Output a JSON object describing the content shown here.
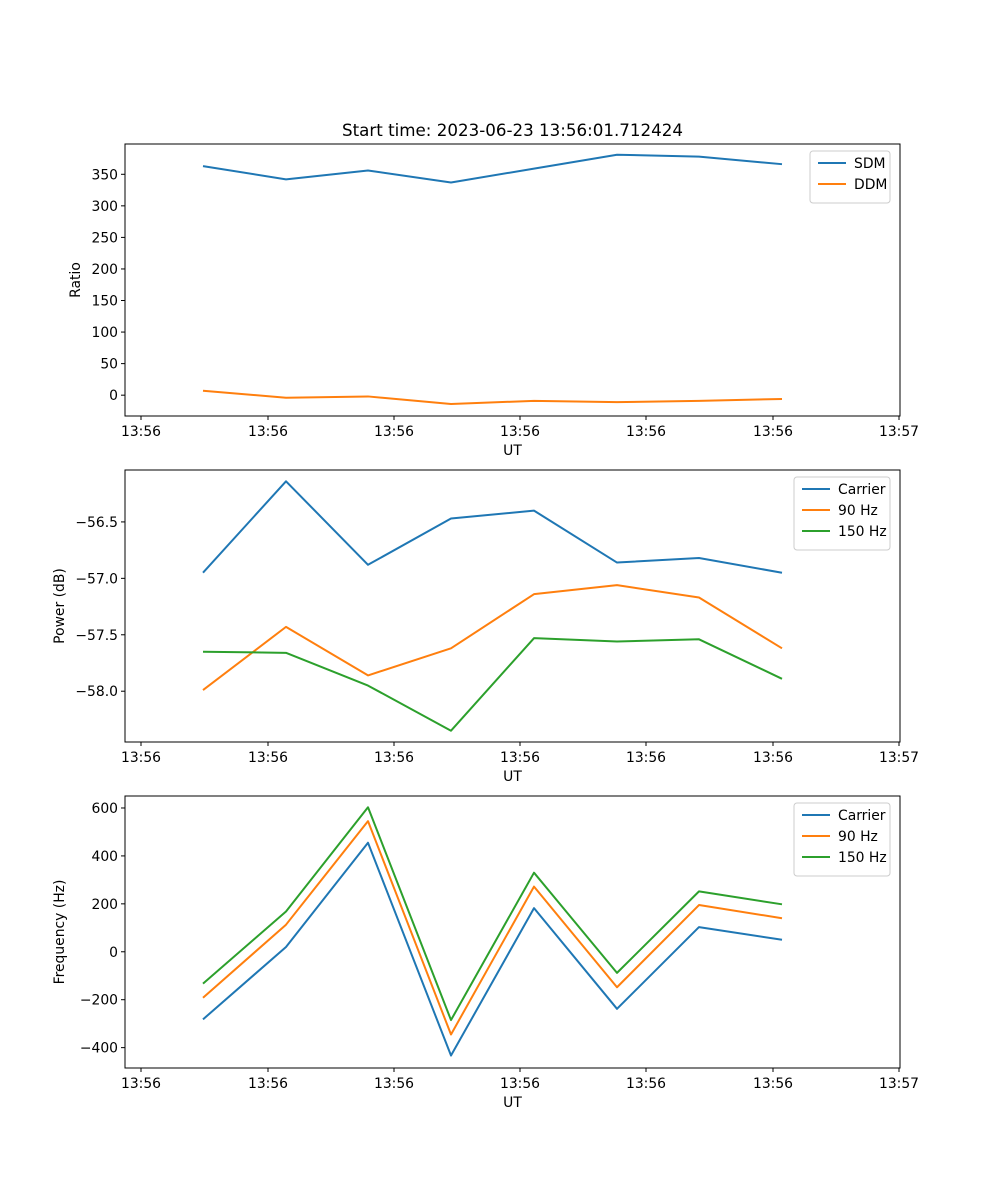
{
  "colors": {
    "blue": "#1f77b4",
    "orange": "#ff7f0e",
    "green": "#2ca02c"
  },
  "chart_data": [
    {
      "type": "line",
      "title": "Start time: 2023-06-23 13:56:01.712424",
      "xlabel": "UT",
      "ylabel": "Ratio",
      "x_tick_labels": [
        "13:56",
        "13:56",
        "13:56",
        "13:56",
        "13:56",
        "13:56",
        "13:56"
      ],
      "x_tick_labels_last": "13:57",
      "ylim": [
        -33,
        398
      ],
      "yticks": [
        0,
        50,
        100,
        150,
        200,
        250,
        300,
        350
      ],
      "legend": "top-right",
      "series": [
        {
          "name": "SDM",
          "color": "#1f77b4",
          "values": [
            363,
            342,
            356,
            337,
            359,
            381,
            378,
            366
          ]
        },
        {
          "name": "DDM",
          "color": "#ff7f0e",
          "values": [
            7,
            -4,
            -2,
            -14,
            -9,
            -11,
            -9,
            -6
          ]
        }
      ]
    },
    {
      "type": "line",
      "title": "",
      "xlabel": "UT",
      "ylabel": "Power (dB)",
      "x_tick_labels": [
        "13:56",
        "13:56",
        "13:56",
        "13:56",
        "13:56",
        "13:56",
        "13:56"
      ],
      "x_tick_labels_last": "13:57",
      "ylim": [
        -58.45,
        -56.04
      ],
      "yticks": [
        -58.0,
        -57.5,
        -57.0,
        -56.5
      ],
      "ytick_labels": [
        "−58.0",
        "−57.5",
        "−57.0",
        "−56.5"
      ],
      "legend": "top-right",
      "series": [
        {
          "name": "Carrier",
          "color": "#1f77b4",
          "values": [
            -56.95,
            -56.14,
            -56.88,
            -56.47,
            -56.4,
            -56.86,
            -56.82,
            -56.95
          ]
        },
        {
          "name": "90 Hz",
          "color": "#ff7f0e",
          "values": [
            -57.99,
            -57.43,
            -57.86,
            -57.62,
            -57.14,
            -57.06,
            -57.17,
            -57.62
          ]
        },
        {
          "name": "150 Hz",
          "color": "#2ca02c",
          "values": [
            -57.65,
            -57.66,
            -57.95,
            -58.35,
            -57.53,
            -57.56,
            -57.54,
            -57.89
          ]
        }
      ]
    },
    {
      "type": "line",
      "title": "",
      "xlabel": "UT",
      "ylabel": "Frequency (Hz)",
      "x_tick_labels": [
        "13:56",
        "13:56",
        "13:56",
        "13:56",
        "13:56",
        "13:56",
        "13:56"
      ],
      "x_tick_labels_last": "13:57",
      "ylim": [
        -485,
        650
      ],
      "yticks": [
        -400,
        -200,
        0,
        200,
        400,
        600
      ],
      "ytick_labels": [
        "−400",
        "−200",
        "0",
        "200",
        "400",
        "600"
      ],
      "legend": "top-right",
      "series": [
        {
          "name": "Carrier",
          "color": "#1f77b4",
          "values": [
            -282,
            20,
            455,
            -433,
            182,
            -238,
            103,
            50
          ]
        },
        {
          "name": "90 Hz",
          "color": "#ff7f0e",
          "values": [
            -192,
            113,
            545,
            -345,
            272,
            -148,
            195,
            140
          ]
        },
        {
          "name": "150 Hz",
          "color": "#2ca02c",
          "values": [
            -133,
            168,
            603,
            -285,
            330,
            -88,
            252,
            198
          ]
        }
      ]
    }
  ]
}
